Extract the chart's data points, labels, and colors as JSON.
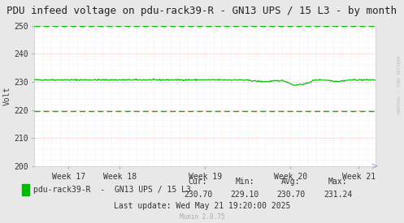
{
  "title": "PDU infeed voltage on pdu-rack39-R - GN13 UPS / 15 L3 - by month",
  "ylabel": "Volt",
  "bg_color": "#e8e8e8",
  "plot_bg_color": "#ffffff",
  "ylim": [
    200,
    250
  ],
  "yticks": [
    200,
    210,
    220,
    230,
    240,
    250
  ],
  "xticklabels": [
    "Week 17",
    "Week 18",
    "Week 19",
    "Week 20",
    "Week 21"
  ],
  "line_color": "#00bb00",
  "line_value": 230.7,
  "dashed_upper": 250.0,
  "dashed_lower": 219.5,
  "legend_label": "pdu-rack39-R  -  GN13 UPS / 15 L3",
  "cur": "230.70",
  "min": "229.10",
  "avg": "230.70",
  "max": "231.24",
  "last_update": "Last update: Wed May 21 19:20:00 2025",
  "munin_version": "Munin 2.0.75",
  "watermark": "RRDTOOL / TOBI OETIKER",
  "title_fontsize": 9,
  "axis_fontsize": 7,
  "legend_fontsize": 7,
  "num_points": 600,
  "hgrid_major_color": "#ffaaaa",
  "hgrid_minor_color": "#ffcccc",
  "vgrid_color": "#ccddff"
}
